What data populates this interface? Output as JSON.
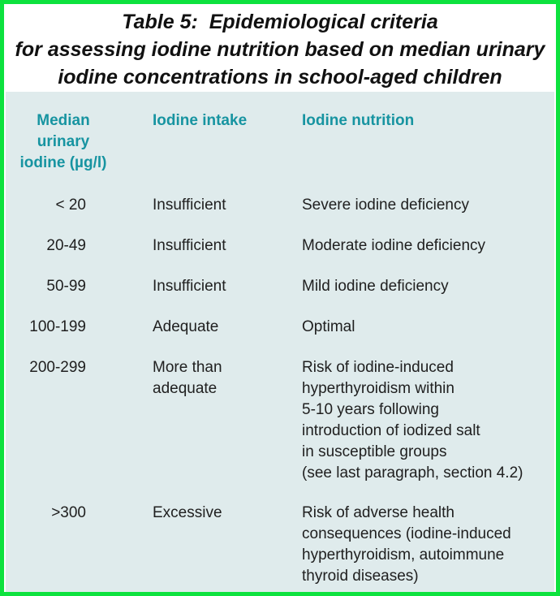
{
  "title": {
    "line1": "Table 5:  Epidemiological criteria",
    "line2": "for assessing iodine nutrition based on median urinary",
    "line3": "iodine concentrations in school-aged children"
  },
  "table": {
    "headers": {
      "median": "Median\nurinary\niodine (µg/l)",
      "intake": "Iodine intake",
      "nutrition": "Iodine nutrition"
    },
    "rows": [
      {
        "median": "< 20",
        "intake": "Insufficient",
        "nutrition": "Severe iodine deficiency"
      },
      {
        "median": "20-49",
        "intake": "Insufficient",
        "nutrition": "Moderate iodine deficiency"
      },
      {
        "median": "50-99",
        "intake": "Insufficient",
        "nutrition": "Mild iodine deficiency"
      },
      {
        "median": "100-199",
        "intake": "Adequate",
        "nutrition": "Optimal"
      },
      {
        "median": "200-299",
        "intake": "More than\nadequate",
        "nutrition": "Risk of iodine-induced\nhyperthyroidism within\n5-10 years following\nintroduction of iodized salt\nin susceptible groups\n(see last paragraph, section 4.2)"
      },
      {
        "median": ">300",
        "intake": "Excessive",
        "nutrition": "Risk of adverse health\nconsequences (iodine-induced\nhyperthyroidism, autoimmune\nthyroid diseases)"
      }
    ]
  },
  "colors": {
    "border_green": "#0de23e",
    "panel_blue": "#dfebec",
    "teal": "#1794a1",
    "text": "#202020"
  }
}
